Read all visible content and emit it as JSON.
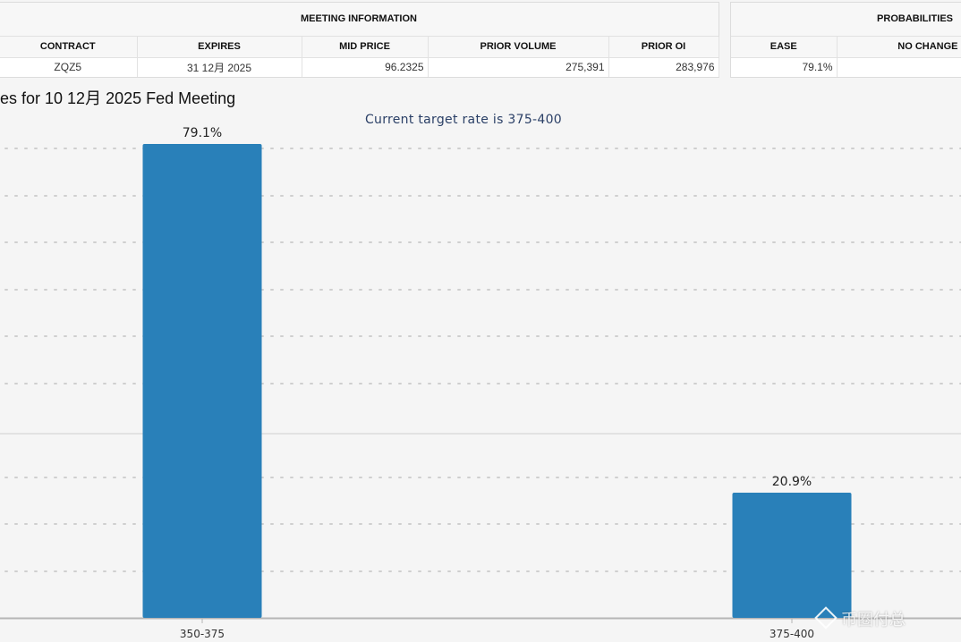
{
  "meeting_info": {
    "title": "MEETING INFORMATION",
    "headers": [
      "CONTRACT",
      "EXPIRES",
      "MID PRICE",
      "PRIOR VOLUME",
      "PRIOR OI"
    ],
    "row": [
      "ZQZ5",
      "31 12月 2025",
      "96.2325",
      "275,391",
      "283,976"
    ]
  },
  "probabilities": {
    "title": "PROBABILITIES",
    "headers": [
      "EASE",
      "NO CHANGE"
    ],
    "row": [
      "79.1%",
      ""
    ]
  },
  "chart_data": {
    "type": "bar",
    "title": "es for 10 12月 2025 Fed Meeting",
    "subtitle": "Current target rate is 375-400",
    "categories": [
      "350-375",
      "375-400"
    ],
    "values": [
      79.1,
      20.9
    ],
    "value_labels": [
      "79.1%",
      "20.9%"
    ],
    "ylim": [
      0,
      80
    ],
    "grid": true,
    "bar_color": "#2980b9"
  },
  "watermark": "币圈付总"
}
